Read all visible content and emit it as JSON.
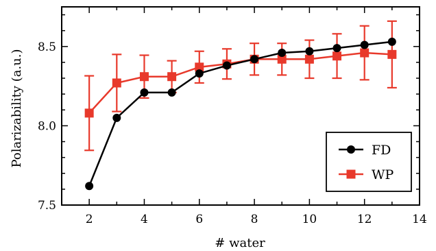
{
  "chart_data": {
    "type": "line",
    "title": "",
    "xlabel": "# water",
    "ylabel": "Polarizability (a.u.)",
    "xlim": [
      1,
      14
    ],
    "ylim": [
      7.5,
      8.75
    ],
    "xticks": [
      2,
      4,
      6,
      8,
      10,
      12,
      14
    ],
    "yticks": [
      7.5,
      8.0,
      8.5
    ],
    "ytick_labels": [
      "7.5",
      "8.0",
      "8.5"
    ],
    "grid": false,
    "legend_position": "bottom-right",
    "series": [
      {
        "name": "FD",
        "color": "#000000",
        "marker": "circle",
        "x": [
          2,
          3,
          4,
          5,
          6,
          7,
          8,
          9,
          10,
          11,
          12,
          13
        ],
        "y": [
          7.62,
          8.05,
          8.21,
          8.21,
          8.33,
          8.38,
          8.42,
          8.46,
          8.47,
          8.49,
          8.51,
          8.53
        ]
      },
      {
        "name": "WP",
        "color": "#e8392b",
        "marker": "square",
        "x": [
          2,
          3,
          4,
          5,
          6,
          7,
          8,
          9,
          10,
          11,
          12,
          13
        ],
        "y": [
          8.08,
          8.27,
          8.31,
          8.31,
          8.37,
          8.39,
          8.42,
          8.42,
          8.42,
          8.44,
          8.46,
          8.45
        ],
        "err": [
          0.235,
          0.18,
          0.135,
          0.1,
          0.1,
          0.095,
          0.1,
          0.1,
          0.12,
          0.14,
          0.17,
          0.21
        ]
      }
    ]
  }
}
